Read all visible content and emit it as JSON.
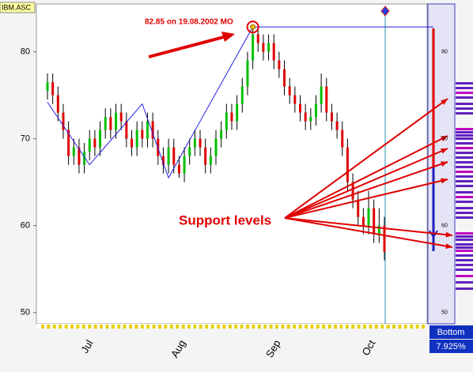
{
  "chart_data": {
    "type": "candlestick",
    "symbol": "IBM.ASC",
    "annotation": "82.85 on 19.08.2002 MO",
    "support_label": "Support levels",
    "panel_title": "Bottom",
    "panel_value": "7.925%",
    "x_labels": [
      "Jul",
      "Aug",
      "Sep",
      "Oct"
    ],
    "up_color": "#00c000",
    "down_color": "#e00000",
    "ylim": [
      48.7,
      85.5
    ],
    "yticks": [
      50,
      60,
      70,
      80
    ],
    "candles": [
      [
        75.5,
        77.5,
        74.5,
        76.5
      ],
      [
        76.5,
        77.5,
        74,
        75
      ],
      [
        75,
        76,
        72,
        73
      ],
      [
        73,
        74,
        70,
        71
      ],
      [
        71,
        72,
        67,
        68
      ],
      [
        68,
        70,
        67,
        69
      ],
      [
        69,
        70,
        66,
        67
      ],
      [
        67,
        69.5,
        66,
        68.5
      ],
      [
        68.5,
        71,
        67.5,
        70
      ],
      [
        70,
        71,
        68,
        69
      ],
      [
        69,
        72,
        68,
        71
      ],
      [
        71,
        73.5,
        70,
        72.5
      ],
      [
        72.5,
        73.5,
        70,
        71
      ],
      [
        71,
        74,
        70,
        73
      ],
      [
        73,
        74,
        71,
        72
      ],
      [
        72,
        73,
        69,
        70
      ],
      [
        70,
        71,
        68,
        69
      ],
      [
        69,
        72,
        68,
        71
      ],
      [
        71,
        72,
        69,
        70
      ],
      [
        70,
        73,
        69,
        72
      ],
      [
        72,
        73,
        69,
        70
      ],
      [
        70,
        71,
        67,
        68
      ],
      [
        68,
        69,
        66,
        67
      ],
      [
        67,
        70,
        66,
        69
      ],
      [
        69,
        70,
        66,
        67
      ],
      [
        67,
        68,
        65.5,
        66
      ],
      [
        66,
        69,
        65,
        68
      ],
      [
        68,
        70,
        67,
        69
      ],
      [
        69,
        71,
        68,
        70
      ],
      [
        70,
        71,
        68,
        69
      ],
      [
        69,
        70,
        66,
        67
      ],
      [
        67,
        69,
        66,
        68
      ],
      [
        68,
        71,
        67,
        70
      ],
      [
        70,
        72,
        69,
        71
      ],
      [
        71,
        74,
        70,
        73
      ],
      [
        73,
        74,
        71,
        72
      ],
      [
        72,
        75,
        71,
        74
      ],
      [
        74,
        77,
        73,
        76
      ],
      [
        76,
        80,
        75,
        79
      ],
      [
        79,
        82.85,
        78,
        82
      ],
      [
        82,
        82.5,
        80,
        81
      ],
      [
        81,
        82,
        79,
        80
      ],
      [
        80,
        82,
        79,
        81
      ],
      [
        81,
        82,
        78,
        79
      ],
      [
        79,
        80,
        77,
        78
      ],
      [
        78,
        79,
        75,
        76
      ],
      [
        76,
        77,
        74,
        75
      ],
      [
        75,
        76,
        73,
        74
      ],
      [
        74,
        75,
        72,
        73
      ],
      [
        73,
        74,
        71,
        72
      ],
      [
        72,
        73.5,
        71,
        72.5
      ],
      [
        72.5,
        75,
        71.5,
        74
      ],
      [
        74,
        77.5,
        73,
        76
      ],
      [
        76,
        77,
        72,
        73
      ],
      [
        73,
        74,
        71,
        72
      ],
      [
        72,
        73,
        70,
        71
      ],
      [
        71,
        72,
        68,
        69
      ],
      [
        69,
        70,
        64,
        65
      ],
      [
        65,
        66,
        62,
        63
      ],
      [
        63,
        64,
        60,
        61
      ],
      [
        61,
        62,
        59,
        60
      ],
      [
        60,
        64,
        59,
        62
      ],
      [
        62,
        63,
        58,
        59
      ],
      [
        59,
        62,
        58,
        60
      ],
      [
        60,
        61,
        56,
        57
      ]
    ],
    "zigzag": {
      "color": "#2020e0",
      "x": [
        1,
        9,
        19,
        24,
        40
      ],
      "values": [
        74.2,
        67,
        74,
        65.5,
        82.85
      ]
    }
  }
}
